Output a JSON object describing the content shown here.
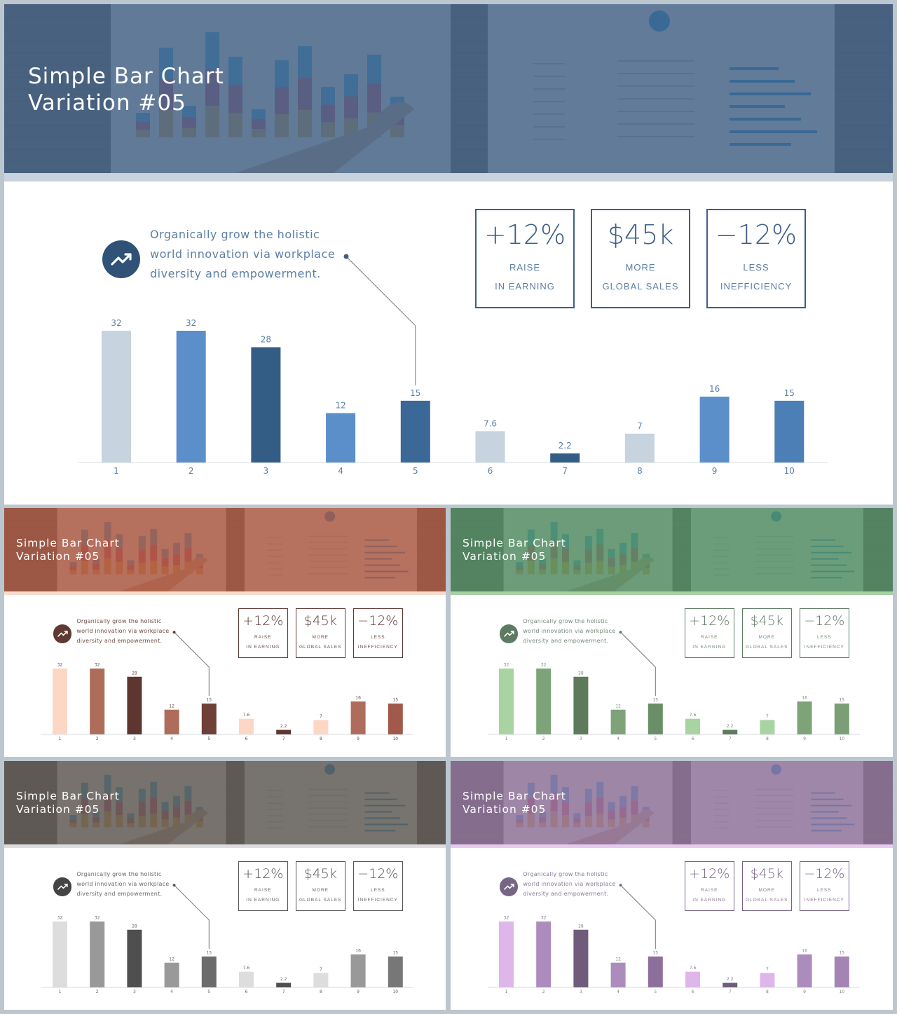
{
  "slide": {
    "title_line1": "Simple Bar Chart",
    "title_line2": "Variation #05",
    "description": [
      "Organically grow the holistic",
      "world innovation via workplace",
      "diversity and empowerment."
    ],
    "kpis": [
      {
        "value": "+12%",
        "label1": "RAISE",
        "label2": "IN EARNING"
      },
      {
        "value": "$45k",
        "label1": "MORE",
        "label2": "GLOBAL SALES"
      },
      {
        "value": "−12%",
        "label1": "LESS",
        "label2": "INEFFICIENCY"
      }
    ],
    "icon": "trending-up-icon"
  },
  "chart_data": {
    "type": "bar",
    "categories": [
      "1",
      "2",
      "3",
      "4",
      "5",
      "6",
      "7",
      "8",
      "9",
      "10"
    ],
    "values": [
      32,
      32,
      28,
      12,
      15,
      7.6,
      2.2,
      7,
      16,
      15
    ],
    "value_labels": [
      "32",
      "32",
      "28",
      "12",
      "15",
      "7.6",
      "2.2",
      "7",
      "16",
      "15"
    ],
    "ylim": [
      0,
      32
    ],
    "grid": false,
    "callout_category": "5"
  },
  "themes": [
    {
      "name": "blue",
      "tint": "#3e5f86",
      "accent": "#3d5f86",
      "text": "#5c7fa6",
      "icon_bg": "#2f5276",
      "divider": "#c9d3dd",
      "bar_colors": [
        "#c7d3de",
        "#5b8fc9",
        "#335d85",
        "#5b8fc9",
        "#3b6896",
        "#c7d3de",
        "#335d85",
        "#c7d3de",
        "#5b8fc9",
        "#4b7fb6"
      ]
    },
    {
      "name": "red",
      "tint": "#a9523d",
      "accent": "#5e3a33",
      "text": "#6a4a43",
      "icon_bg": "#5e3a33",
      "divider": "#f6dccd",
      "bar_colors": [
        "#fdd7c6",
        "#ae6d5b",
        "#5e3630",
        "#ae6d5b",
        "#6e4038",
        "#fdd7c6",
        "#5e3630",
        "#fdd7c6",
        "#ae6d5b",
        "#a0594a"
      ]
    },
    {
      "name": "green",
      "tint": "#4c8a5f",
      "accent": "#5e7b63",
      "text": "#74897a",
      "icon_bg": "#5d7b62",
      "divider": "#a7d1a4",
      "bar_colors": [
        "#a8d4a1",
        "#7ea379",
        "#5d7b5b",
        "#7ea379",
        "#6a8e67",
        "#a8d4a1",
        "#5d7b5b",
        "#a8d4a1",
        "#7ea379",
        "#7a9f75"
      ]
    },
    {
      "name": "gray",
      "tint": "#5a5550",
      "accent": "#555555",
      "text": "#666666",
      "icon_bg": "#444444",
      "divider": "#dddddd",
      "bar_colors": [
        "#dddddd",
        "#999999",
        "#4f4f4f",
        "#999999",
        "#6b6b6b",
        "#dddddd",
        "#4f4f4f",
        "#dddddd",
        "#999999",
        "#777777"
      ]
    },
    {
      "name": "purple",
      "tint": "#8b6e99",
      "accent": "#786586",
      "text": "#8a7897",
      "icon_bg": "#766683",
      "divider": "#e6caf0",
      "bar_colors": [
        "#dfb6ea",
        "#ac8cbd",
        "#705c7a",
        "#ac8cbd",
        "#8d6f9c",
        "#dfb6ea",
        "#705c7a",
        "#dfb6ea",
        "#ac8cbd",
        "#a484b4"
      ]
    }
  ]
}
